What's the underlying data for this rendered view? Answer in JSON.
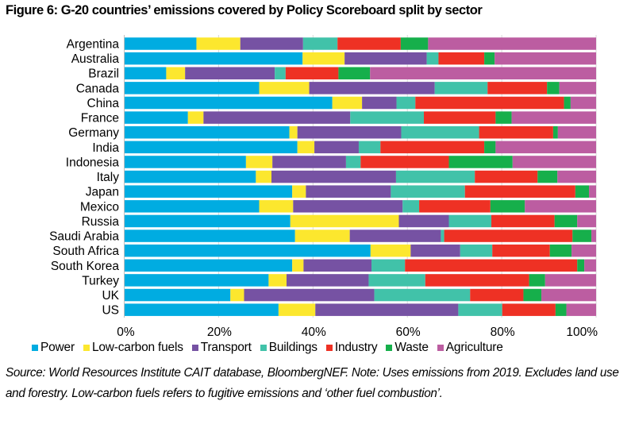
{
  "chart_data": {
    "type": "bar",
    "orientation": "horizontal",
    "stacked": true,
    "normalized": true,
    "title": "Figure 6: G-20 countries’ emissions covered by Policy Scoreboard split by sector",
    "xlabel": "",
    "ylabel": "",
    "xlim": [
      0,
      100
    ],
    "x_ticks": [
      "0%",
      "20%",
      "40%",
      "60%",
      "80%",
      "100%"
    ],
    "grid": "vertical",
    "legend_position": "bottom",
    "categories": [
      "Argentina",
      "Australia",
      "Brazil",
      "Canada",
      "China",
      "France",
      "Germany",
      "India",
      "Indonesia",
      "Italy",
      "Japan",
      "Mexico",
      "Russia",
      "Saudi Arabia",
      "South Africa",
      "South Korea",
      "Turkey",
      "UK",
      "US"
    ],
    "series": [
      {
        "name": "Power",
        "color": "#00ACE1",
        "values": [
          15.3,
          37.8,
          8.9,
          28.6,
          44.1,
          13.5,
          35.0,
          36.7,
          25.8,
          27.9,
          35.6,
          28.6,
          35.2,
          36.2,
          52.2,
          35.6,
          30.6,
          22.5,
          32.7
        ]
      },
      {
        "name": "Low-carbon fuels",
        "color": "#FCE72E",
        "values": [
          9.3,
          8.9,
          4.0,
          10.6,
          6.3,
          3.3,
          1.7,
          3.6,
          5.6,
          3.3,
          2.9,
          7.2,
          23.0,
          11.6,
          8.5,
          2.4,
          3.8,
          2.9,
          7.8
        ]
      },
      {
        "name": "Transport",
        "color": "#7652A3",
        "values": [
          13.3,
          17.4,
          19.0,
          26.6,
          7.3,
          31.1,
          22.0,
          9.4,
          15.6,
          26.4,
          18.0,
          23.2,
          10.6,
          19.3,
          10.5,
          14.4,
          17.4,
          27.6,
          30.3
        ]
      },
      {
        "name": "Buildings",
        "color": "#41C2A9",
        "values": [
          7.3,
          2.5,
          2.3,
          11.2,
          4.0,
          15.6,
          16.5,
          4.6,
          3.1,
          16.7,
          15.7,
          3.5,
          9.0,
          0.7,
          6.8,
          7.1,
          12.0,
          20.3,
          9.3
        ]
      },
      {
        "name": "Industry",
        "color": "#EE3124",
        "values": [
          13.4,
          9.7,
          11.2,
          12.6,
          31.5,
          15.2,
          15.7,
          22.0,
          18.7,
          13.3,
          23.4,
          15.1,
          13.4,
          27.2,
          12.2,
          36.5,
          22.0,
          11.3,
          11.3
        ]
      },
      {
        "name": "Waste",
        "color": "#16AF4B",
        "values": [
          5.8,
          2.2,
          6.7,
          2.6,
          1.4,
          3.4,
          1.0,
          2.4,
          13.5,
          4.2,
          2.9,
          7.3,
          4.8,
          4.0,
          4.6,
          1.5,
          3.4,
          3.8,
          2.3
        ]
      },
      {
        "name": "Agriculture",
        "color": "#BC5DA1",
        "values": [
          35.6,
          21.5,
          47.9,
          7.8,
          5.4,
          17.9,
          8.1,
          21.3,
          17.7,
          8.2,
          1.5,
          15.1,
          4.0,
          1.0,
          5.2,
          2.5,
          10.8,
          11.6,
          6.3
        ]
      }
    ]
  },
  "source_note": "Source: World Resources Institute CAIT database, BloombergNEF. Note: Uses emissions from 2019. Excludes land use and forestry. Low-carbon fuels refers to fugitive emissions and ‘other fuel combustion’.",
  "colors": {
    "gridline": "#D9D9D9",
    "axis": "#BFBFBF"
  }
}
